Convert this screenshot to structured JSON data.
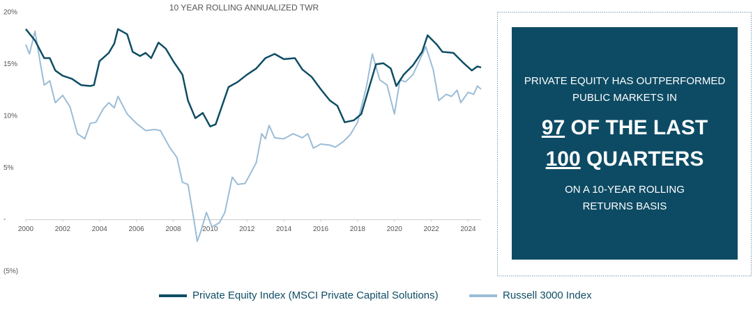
{
  "chart_data": {
    "type": "line",
    "title": "10 YEAR ROLLING ANNUALIZED TWR",
    "xlim": [
      2000,
      2024.7
    ],
    "xticks": [
      2000,
      2002,
      2004,
      2006,
      2008,
      2010,
      2012,
      2014,
      2016,
      2018,
      2020,
      2022,
      2024
    ],
    "ylim": [
      -5,
      20
    ],
    "yticks": [
      {
        "value": 20,
        "label": "20%"
      },
      {
        "value": 15,
        "label": "15%"
      },
      {
        "value": 10,
        "label": "10%"
      },
      {
        "value": 5,
        "label": "5%"
      },
      {
        "value": 0,
        "label": "-"
      },
      {
        "value": -5,
        "label": "(5%)"
      }
    ],
    "grid": false,
    "legend": "bottom",
    "series": [
      {
        "name": "Private Equity Index (MSCI Private Capital Solutions)",
        "color": "#0e4d64",
        "x": [
          2000,
          2000.5,
          2001,
          2001.3,
          2001.6,
          2002,
          2002.5,
          2003,
          2003.5,
          2003.7,
          2004,
          2004.5,
          2004.8,
          2005,
          2005.5,
          2005.8,
          2006.2,
          2006.5,
          2006.8,
          2007.2,
          2007.6,
          2008,
          2008.5,
          2008.8,
          2009.2,
          2009.6,
          2010,
          2010.3,
          2011,
          2011.5,
          2012,
          2012.5,
          2013,
          2013.5,
          2014,
          2014.6,
          2015,
          2015.5,
          2016,
          2016.5,
          2016.9,
          2017.3,
          2017.8,
          2018.2,
          2018.6,
          2019,
          2019.4,
          2019.8,
          2020.1,
          2020.5,
          2021,
          2021.5,
          2021.8,
          2022.3,
          2022.6,
          2023.2,
          2023.7,
          2024.2,
          2024.5,
          2024.7
        ],
        "values": [
          18.4,
          17.3,
          15.6,
          15.6,
          14.4,
          13.9,
          13.6,
          13.0,
          12.9,
          13.0,
          15.3,
          16.1,
          17.0,
          18.4,
          17.9,
          16.2,
          15.8,
          16.1,
          15.6,
          17.1,
          16.5,
          15.3,
          14.0,
          11.5,
          9.8,
          10.3,
          9.0,
          9.2,
          12.8,
          13.3,
          14.0,
          14.6,
          15.6,
          16.0,
          15.5,
          15.6,
          14.5,
          13.8,
          12.6,
          11.5,
          11.0,
          9.4,
          9.6,
          10.2,
          12.6,
          15.0,
          15.1,
          14.6,
          12.9,
          14.0,
          14.9,
          16.2,
          17.8,
          16.9,
          16.2,
          16.1,
          15.2,
          14.4,
          14.8,
          14.7
        ]
      },
      {
        "name": "Russell 3000 Index",
        "color": "#9bbcd6",
        "x": [
          2000,
          2000.2,
          2000.5,
          2000.8,
          2001,
          2001.3,
          2001.6,
          2002,
          2002.4,
          2002.8,
          2003.2,
          2003.5,
          2003.8,
          2004.2,
          2004.5,
          2004.8,
          2005,
          2005.5,
          2006,
          2006.5,
          2007,
          2007.3,
          2007.8,
          2008.2,
          2008.5,
          2008.8,
          2009.1,
          2009.3,
          2009.5,
          2009.8,
          2010.1,
          2010.5,
          2010.8,
          2011.2,
          2011.5,
          2011.9,
          2012.5,
          2012.8,
          2013,
          2013.2,
          2013.5,
          2014,
          2014.5,
          2015,
          2015.3,
          2015.6,
          2016,
          2016.5,
          2016.8,
          2017.2,
          2017.6,
          2018,
          2018.5,
          2018.8,
          2019.2,
          2019.6,
          2020,
          2020.3,
          2020.6,
          2021,
          2021.5,
          2021.7,
          2022.1,
          2022.4,
          2022.8,
          2023.1,
          2023.4,
          2023.6,
          2024,
          2024.3,
          2024.5,
          2024.7
        ],
        "values": [
          16.9,
          16.0,
          18.2,
          15.0,
          13.0,
          13.4,
          11.3,
          12.0,
          10.9,
          8.3,
          7.8,
          9.3,
          9.4,
          10.7,
          11.3,
          10.8,
          11.9,
          10.2,
          9.3,
          8.6,
          8.7,
          8.6,
          7.0,
          6.0,
          3.6,
          3.4,
          0.2,
          -2.1,
          -1.1,
          0.7,
          -0.7,
          -0.3,
          0.7,
          4.1,
          3.4,
          3.5,
          5.5,
          8.3,
          7.8,
          9.1,
          7.9,
          7.8,
          8.3,
          7.9,
          8.3,
          6.9,
          7.3,
          7.2,
          7.0,
          7.5,
          8.2,
          9.4,
          13.0,
          16.0,
          13.5,
          13.0,
          10.2,
          13.5,
          13.3,
          14.0,
          15.9,
          16.7,
          14.5,
          11.5,
          12.1,
          11.9,
          12.5,
          11.3,
          12.3,
          12.1,
          12.9,
          12.6
        ]
      }
    ]
  },
  "callout": {
    "line1": "PRIVATE EQUITY HAS OUTPERFORMED",
    "line2": "PUBLIC MARKETS IN",
    "highlight1_number": "97",
    "highlight1_text": "OF THE LAST",
    "highlight2_number": "100",
    "highlight2_text": "QUARTERS",
    "line3": "ON A 10-YEAR ROLLING",
    "line4": "RETURNS BASIS"
  }
}
